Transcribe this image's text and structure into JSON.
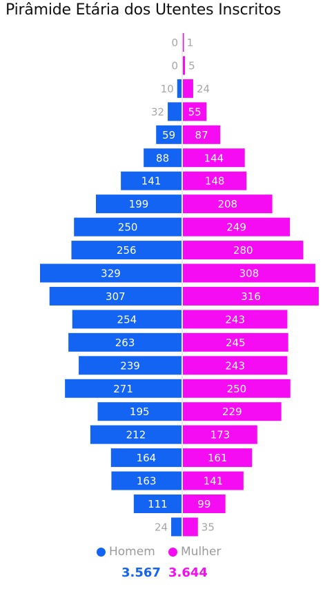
{
  "title": "Pirâmide Etária dos Utentes Inscritos",
  "colors": {
    "men": "#1464f4",
    "women": "#f60cf2",
    "label_outside": "#a6a6a6",
    "label_inside": "#ffffff"
  },
  "chart_data": {
    "type": "bar",
    "orientation": "horizontal-mirrored",
    "series": [
      {
        "name": "Homem",
        "values": [
          0,
          0,
          10,
          32,
          59,
          88,
          141,
          199,
          250,
          256,
          329,
          307,
          254,
          263,
          239,
          271,
          195,
          212,
          164,
          163,
          111,
          24
        ]
      },
      {
        "name": "Mulher",
        "values": [
          1,
          5,
          24,
          55,
          87,
          144,
          148,
          208,
          249,
          280,
          308,
          316,
          243,
          245,
          243,
          250,
          229,
          173,
          161,
          141,
          99,
          35
        ]
      }
    ],
    "max_value": 329
  },
  "legend": {
    "men_label": "Homem",
    "women_label": "Mulher"
  },
  "totals": {
    "men": "3.567",
    "women": "3.644"
  }
}
